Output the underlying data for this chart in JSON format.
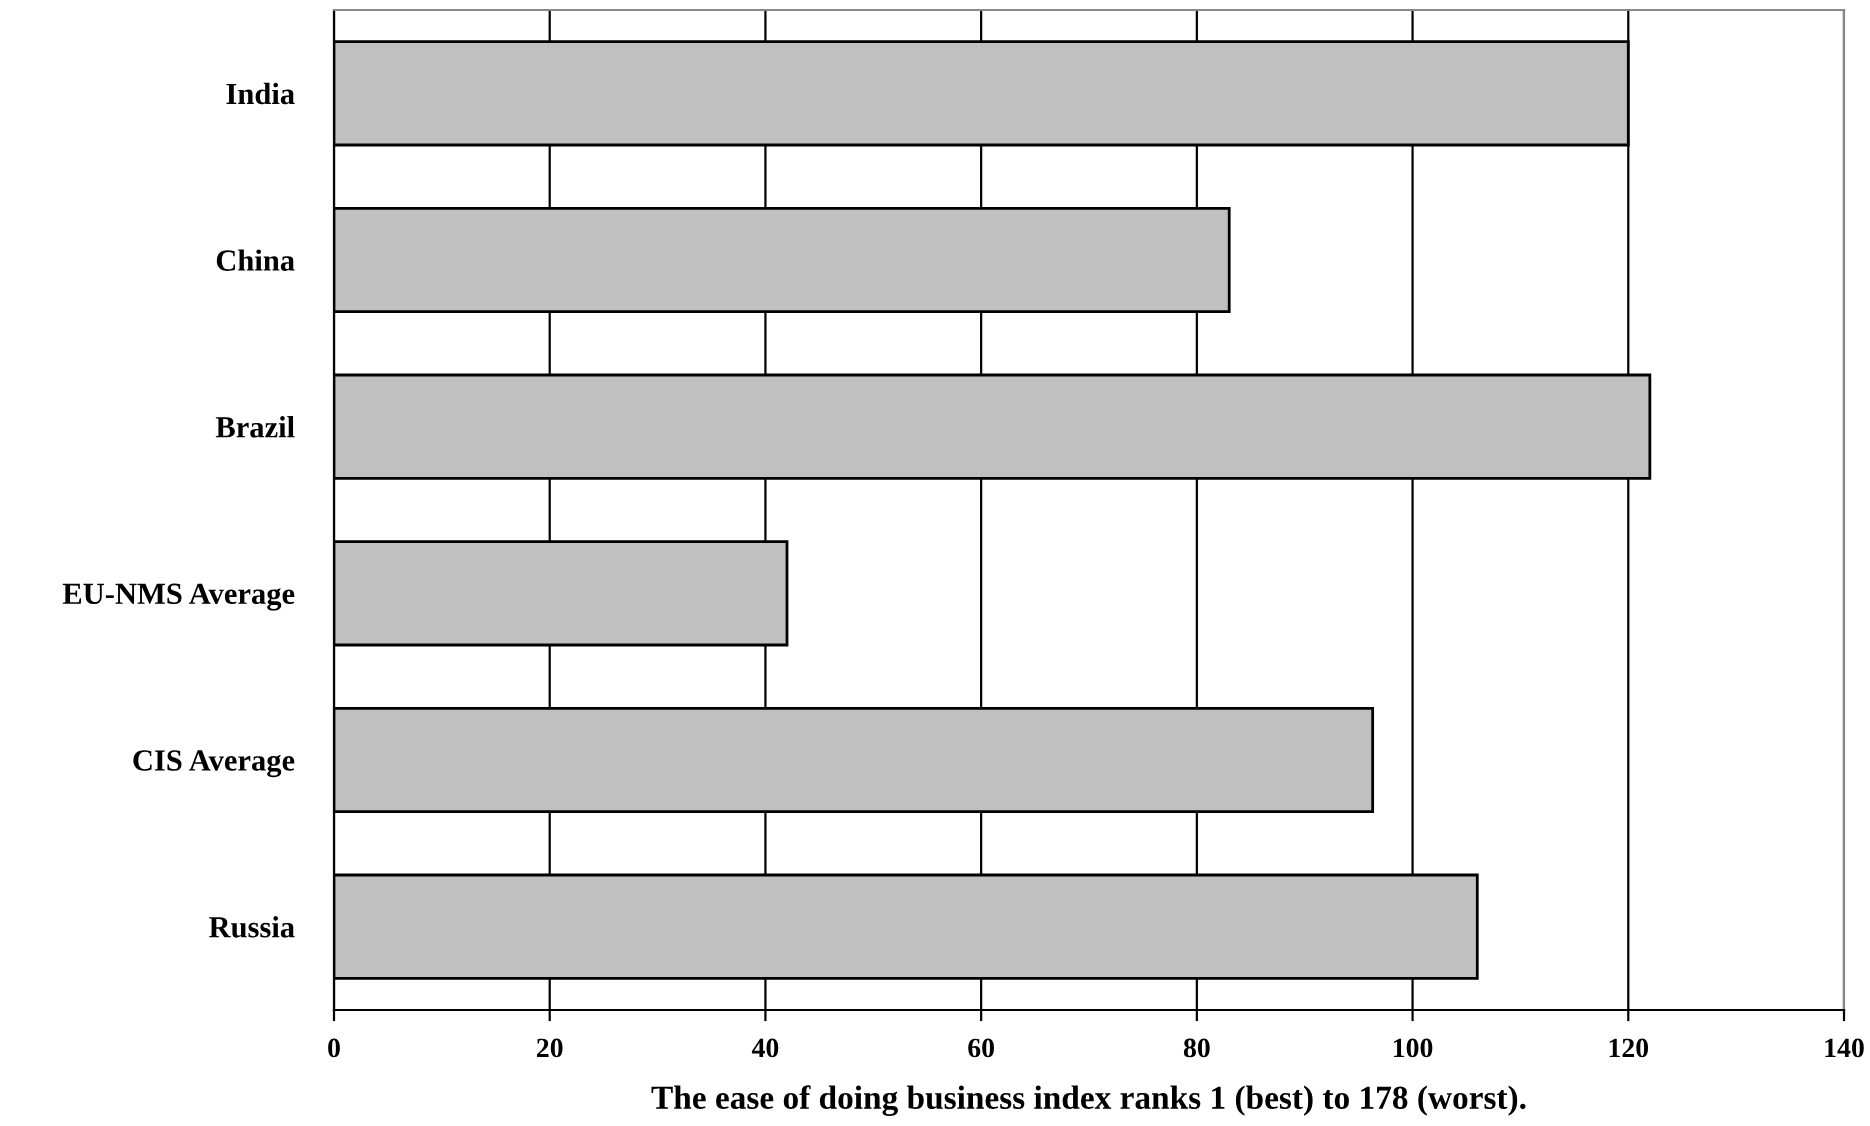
{
  "chart_data": {
    "type": "bar",
    "orientation": "horizontal",
    "xlabel": "The ease of doing business index ranks 1 (best) to 178 (worst).",
    "categories": [
      "India",
      "China",
      "Brazil",
      "EU-NMS Average",
      "CIS Average",
      "Russia"
    ],
    "values": [
      120,
      83,
      122,
      42,
      96.3,
      106
    ],
    "color": "#c0c0c0",
    "xlim": [
      0,
      140
    ],
    "xticks": [
      0,
      20,
      40,
      60,
      80,
      100,
      120,
      140
    ],
    "grid": "x",
    "legend": false
  }
}
